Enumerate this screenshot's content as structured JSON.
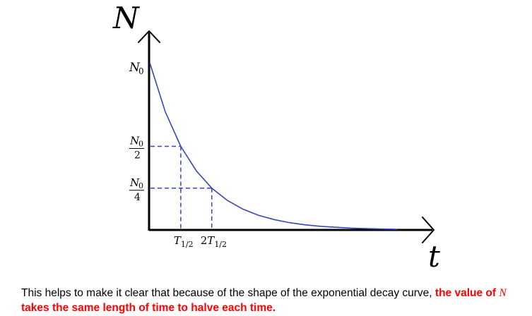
{
  "chart_data": {
    "type": "line",
    "series": [
      {
        "x": [
          0,
          0.5,
          1,
          1.5,
          2,
          2.5,
          3,
          3.5,
          4,
          4.5,
          5,
          5.5,
          6,
          6.5,
          7,
          7.5,
          8
        ],
        "values": [
          1,
          0.707,
          0.5,
          0.354,
          0.25,
          0.177,
          0.125,
          0.088,
          0.0625,
          0.044,
          0.031,
          0.022,
          0.016,
          0.011,
          0.008,
          0.0055,
          0.004
        ]
      }
    ],
    "xlim": [
      0,
      8
    ],
    "ylim": [
      0,
      1
    ],
    "guides": [
      {
        "x": 1,
        "y": 0.5
      },
      {
        "x": 2,
        "y": 0.25
      }
    ],
    "xlabel": "t",
    "ylabel": "N",
    "y_ticks": [
      {
        "value": 1,
        "base": "N",
        "sub": "0"
      },
      {
        "value": 0.5,
        "num_base": "N",
        "num_sub": "0",
        "den": "2"
      },
      {
        "value": 0.25,
        "num_base": "N",
        "num_sub": "0",
        "den": "4"
      }
    ],
    "x_ticks": [
      {
        "value": 1,
        "prefix": "",
        "base": "T",
        "sub": "1/2"
      },
      {
        "value": 2,
        "prefix": "2",
        "base": "T",
        "sub": "1/2"
      }
    ],
    "grid": false,
    "colors": {
      "curve": "#3a45b8",
      "guides": "#3a45b8",
      "axes": "#000000"
    }
  },
  "caption": {
    "text_before": "This helps to make it clear that because of the shape of the exponential decay curve, ",
    "highlight_1": "the value of ",
    "variable": "N",
    "highlight_2": " takes the same length of time to halve each time.",
    "highlight_color": "#ff0000"
  }
}
